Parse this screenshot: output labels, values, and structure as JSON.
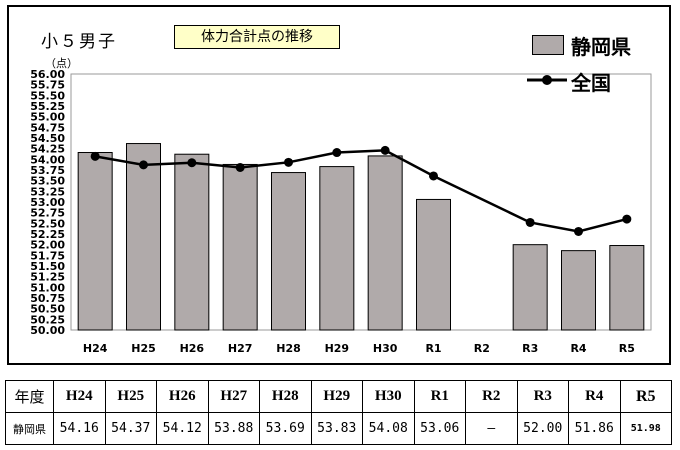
{
  "chart_data": {
    "type": "bar",
    "title": "体力合計点の推移",
    "subtitle": "小５男子",
    "ylabel": "（点）",
    "ylim": [
      50.0,
      56.0
    ],
    "ytick_step": 0.25,
    "yticks": [
      "50.00",
      "50.25",
      "50.50",
      "50.75",
      "51.00",
      "51.25",
      "51.50",
      "51.75",
      "52.00",
      "52.25",
      "52.50",
      "52.75",
      "53.00",
      "53.25",
      "53.50",
      "53.75",
      "54.00",
      "54.25",
      "54.50",
      "54.75",
      "55.00",
      "55.25",
      "55.50",
      "55.75",
      "56.00"
    ],
    "categories": [
      "H24",
      "H25",
      "H26",
      "H27",
      "H28",
      "H29",
      "H30",
      "R1",
      "R2",
      "R3",
      "R4",
      "R5"
    ],
    "grid": false,
    "legend_position": "top-right",
    "series": [
      {
        "name": "静岡県",
        "kind": "bar",
        "color": "#b0aaaa",
        "values": [
          54.16,
          54.37,
          54.12,
          53.88,
          53.69,
          53.83,
          54.08,
          53.06,
          null,
          52.0,
          51.86,
          51.98
        ]
      },
      {
        "name": "全国",
        "kind": "line",
        "color": "#000000",
        "values": [
          54.07,
          53.87,
          53.92,
          53.81,
          53.93,
          54.16,
          54.21,
          53.61,
          null,
          52.52,
          52.31,
          52.6
        ]
      }
    ]
  },
  "table": {
    "corner": "年度",
    "row_label": "静岡県",
    "headers": [
      "H24",
      "H25",
      "H26",
      "H27",
      "H28",
      "H29",
      "H30",
      "R1",
      "R2",
      "R3",
      "R4",
      "R5"
    ],
    "values": [
      "54.16",
      "54.37",
      "54.12",
      "53.88",
      "53.69",
      "53.83",
      "54.08",
      "53.06",
      "—",
      "52.00",
      "51.86",
      "51.98"
    ]
  }
}
